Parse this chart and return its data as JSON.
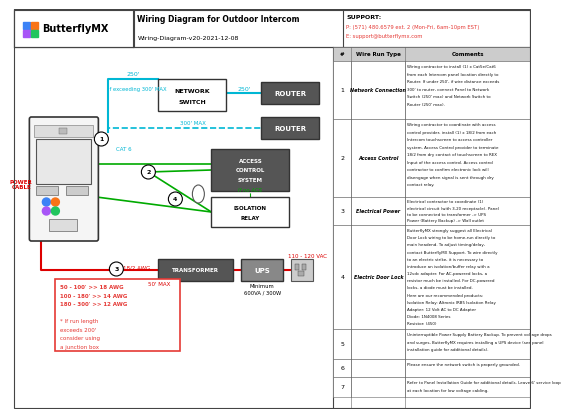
{
  "title": "Wiring Diagram for Outdoor Intercom",
  "subtitle": "Wiring-Diagram-v20-2021-12-08",
  "support_label": "SUPPORT:",
  "support_phone": "P: (571) 480.6579 ext. 2 (Mon-Fri, 6am-10pm EST)",
  "support_email": "E: support@butterflymx.com",
  "logo_text": "ButterflyMX",
  "bg_color": "#ffffff",
  "cyan_color": "#00b7d4",
  "green_color": "#00aa00",
  "red_color": "#dd0000",
  "pink_red": "#e53935",
  "table_rows": [
    {
      "num": "1",
      "type": "Network Connection",
      "comment": "Wiring contractor to install (1) x Cat5e/Cat6\nfrom each Intercom panel location directly to\nRouter. If under 250', if wire distance exceeds\n300' to router, connect Panel to Network\nSwitch (250' max) and Network Switch to\nRouter (250' max)."
    },
    {
      "num": "2",
      "type": "Access Control",
      "comment": "Wiring contractor to coordinate with access\ncontrol provider, install (1) x 18/2 from each\nIntercom touchscreen to access controller\nsystem. Access Control provider to terminate\n18/2 from dry contact of touchscreen to REX\nInput of the access control. Access control\ncontractor to confirm electronic lock will\ndisengage when signal is sent through dry\ncontact relay."
    },
    {
      "num": "3",
      "type": "Electrical Power",
      "comment": "Electrical contractor to coordinate (1)\nelectrical circuit (with 3-20 receptacle). Panel\nto be connected to transformer -> UPS\nPower (Battery Backup) -> Wall outlet"
    },
    {
      "num": "4",
      "type": "Electric Door Lock",
      "comment": "ButterflyMX strongly suggest all Electrical\nDoor Lock wiring to be home-run directly to\nmain headend. To adjust timing/delay,\ncontact ButterflyMX Support. To wire directly\nto an electric strike, it is necessary to\nintroduce an isolation/buffer relay with a\n12vdc adapter. For AC-powered locks, a\nresistor much be installed. For DC-powered\nlocks, a diode must be installed.\nHere are our recommended products:\nIsolation Relay: Altronix IRB5 Isolation Relay\nAdapter: 12 Volt AC to DC Adapter\nDiode: 1N4008 Series\nResistor: (450)"
    },
    {
      "num": "5",
      "type": "",
      "comment": "Uninterruptible Power Supply Battery Backup. To prevent voltage drops\nand surges, ButterflyMX requires installing a UPS device (see panel\ninstallation guide for additional details)."
    },
    {
      "num": "6",
      "type": "",
      "comment": "Please ensure the network switch is properly grounded."
    },
    {
      "num": "7",
      "type": "",
      "comment": "Refer to Panel Installation Guide for additional details. Leave 6' service loop\nat each location for low voltage cabling."
    }
  ]
}
